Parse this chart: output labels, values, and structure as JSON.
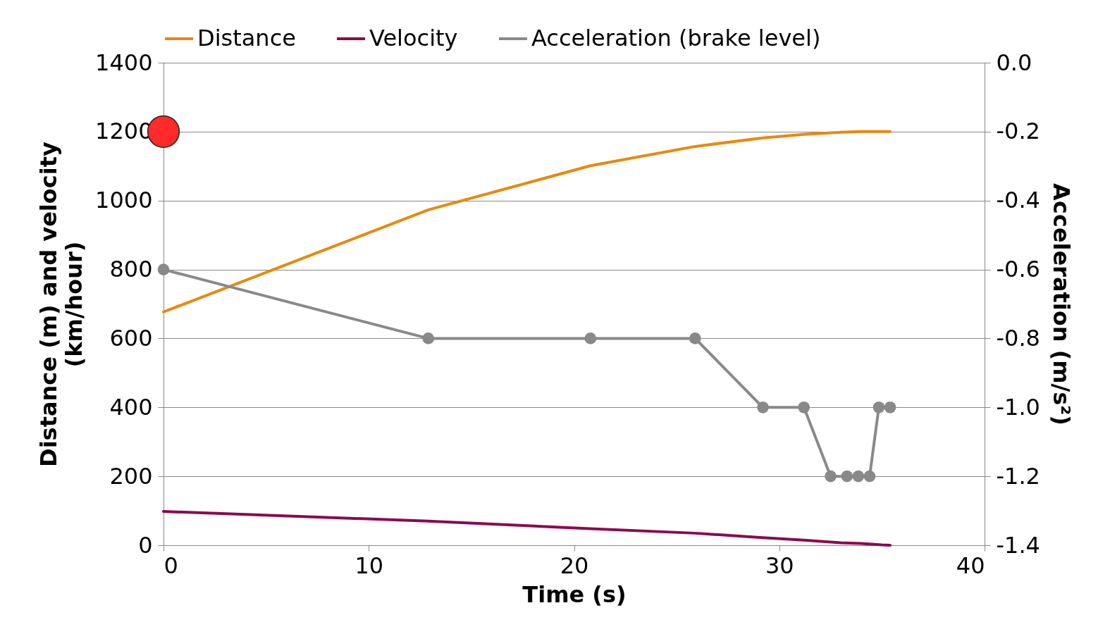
{
  "chart_data": {
    "type": "line",
    "xlabel": "Time (s)",
    "ylabel": "Distance (m) and velocity (km/hour)",
    "y2label": "Acceleration (m/s²)",
    "xlim": [
      0,
      40
    ],
    "xticks": [
      0,
      10,
      20,
      30,
      40
    ],
    "ylim": [
      0,
      1400
    ],
    "yticks": [
      0,
      200,
      400,
      600,
      800,
      1000,
      1200,
      1400
    ],
    "y2lim": [
      -1.4,
      0
    ],
    "y2ticks": [
      {
        "value": -1.4,
        "label": "-1.4"
      },
      {
        "value": -1.2,
        "label": "-1.2"
      },
      {
        "value": -1,
        "label": "-1.0"
      },
      {
        "value": -0.8,
        "label": "-0.8"
      },
      {
        "value": -0.6,
        "label": "-0.6"
      },
      {
        "value": -0.4,
        "label": "-0.4"
      },
      {
        "value": -0.2,
        "label": "-0.2"
      },
      {
        "value": 0,
        "label": "0.0"
      }
    ],
    "grid": "y",
    "legend": "top",
    "line_style": "solid",
    "series": [
      {
        "name": "Distance",
        "color": "#e8890c",
        "x": [
          0,
          12.9,
          20.8,
          25.9,
          29.2,
          31.2,
          33,
          34,
          35.4
        ],
        "values": [
          677,
          973,
          1101,
          1157,
          1182,
          1192,
          1198,
          1200,
          1200
        ]
      },
      {
        "name": "Velocity",
        "color": "#8b0a50",
        "x": [
          0,
          12.9,
          20.8,
          25.9,
          29.2,
          31.2,
          33,
          34,
          35,
          35.4
        ],
        "values": [
          98,
          70,
          48,
          35,
          22,
          15,
          7,
          5,
          1,
          0
        ]
      },
      {
        "name": "Acceleration (brake level)",
        "color": "#898989",
        "axis": "y2",
        "marker": "circle",
        "x": [
          0,
          12.9,
          20.8,
          25.9,
          29.2,
          31.2,
          32.5,
          33.3,
          33.85,
          34.4,
          34.85,
          35.4
        ],
        "values": [
          -0.6,
          -0.8,
          -0.8,
          -0.8,
          -1,
          -1,
          -1.2,
          -1.2,
          -1.2,
          -1.2,
          -1,
          -1
        ]
      },
      {
        "type": "scatter",
        "color": "#ff2a2a",
        "marker": "circle",
        "x": [
          0
        ],
        "values": [
          1200
        ]
      }
    ]
  }
}
